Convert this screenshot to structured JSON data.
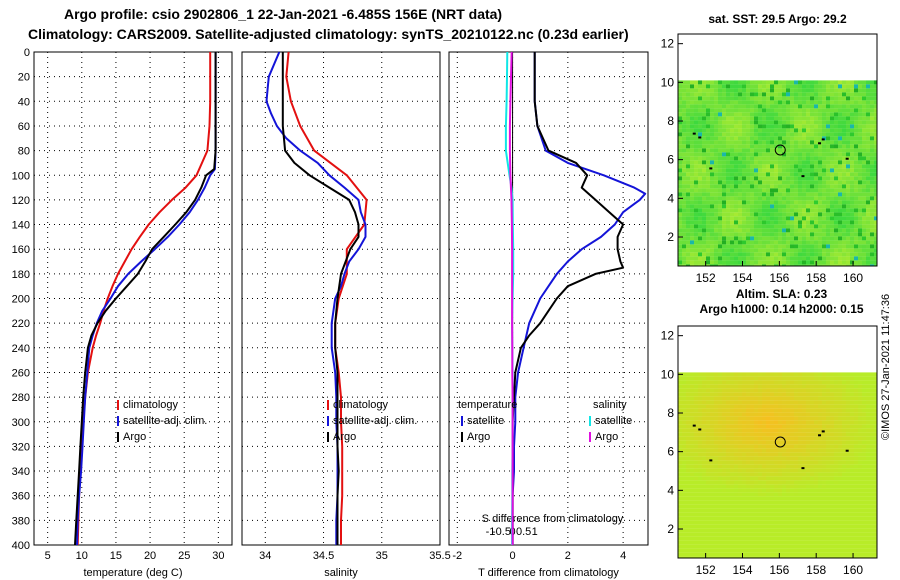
{
  "header": {
    "title_line1": "Argo profile: csio 2902806_1 22-Jan-2021 -6.485S 156E (NRT data)",
    "title_line2": "Climatology: CARS2009. Satellite-adjusted climatology: synTS_20210122.nc (0.23d earlier)"
  },
  "credit": "©IMOS 27-Jan-2021 11:47:36",
  "colors": {
    "climatology": "#e31010",
    "satellite": "#1414d8",
    "argo": "#000000",
    "salinity": "#e010e0",
    "temp_sat": "#10e6e6"
  },
  "chart_data": [
    {
      "name": "temperature-profile",
      "type": "line",
      "xlabel": "temperature (deg C)",
      "ylabel": "depth",
      "xlim": [
        3,
        32
      ],
      "ylim": [
        400,
        0
      ],
      "xticks": [
        "5",
        "10",
        "15",
        "20",
        "25",
        "30"
      ],
      "yticks": [
        "0",
        "20",
        "40",
        "60",
        "80",
        "100",
        "120",
        "140",
        "160",
        "180",
        "200",
        "220",
        "240",
        "260",
        "280",
        "300",
        "320",
        "340",
        "360",
        "380",
        "400"
      ],
      "legend": [
        "climatology",
        "satellite-adj. clim.",
        "Argo"
      ],
      "series": [
        {
          "name": "climatology",
          "depth": [
            0,
            20,
            40,
            60,
            80,
            100,
            110,
            120,
            130,
            140,
            150,
            160,
            170,
            180,
            190,
            200,
            210,
            220,
            230,
            240,
            260,
            280,
            300,
            320,
            340,
            360,
            380,
            400
          ],
          "values": [
            28.8,
            28.8,
            28.8,
            28.7,
            28.4,
            26.8,
            25.2,
            23.2,
            21.4,
            19.8,
            18.5,
            17.3,
            16.3,
            15.3,
            14.5,
            13.8,
            13.2,
            12.7,
            12.1,
            11.6,
            10.9,
            10.5,
            10.2,
            10.0,
            9.8,
            9.6,
            9.5,
            9.4
          ]
        },
        {
          "name": "satellite-adj. clim.",
          "depth": [
            0,
            20,
            40,
            60,
            80,
            95,
            100,
            110,
            120,
            130,
            140,
            150,
            160,
            170,
            180,
            190,
            200,
            210,
            220,
            230,
            240,
            260,
            280,
            300,
            320,
            340,
            360,
            380,
            400
          ],
          "values": [
            29.6,
            29.6,
            29.6,
            29.6,
            29.6,
            29.5,
            28.8,
            28.0,
            27.0,
            25.8,
            24.3,
            22.6,
            20.7,
            18.7,
            16.8,
            15.3,
            14.2,
            13.0,
            12.2,
            11.6,
            11.1,
            10.8,
            10.5,
            10.3,
            10.1,
            9.9,
            9.6,
            9.4,
            9.3
          ]
        },
        {
          "name": "Argo",
          "depth": [
            0,
            20,
            40,
            60,
            80,
            95,
            100,
            110,
            120,
            130,
            140,
            150,
            160,
            170,
            180,
            190,
            200,
            210,
            220,
            230,
            240,
            260,
            280,
            300,
            320,
            340,
            360,
            380,
            400
          ],
          "values": [
            29.6,
            29.6,
            29.6,
            29.6,
            29.6,
            29.4,
            28.2,
            27.5,
            26.6,
            25.3,
            23.7,
            22.0,
            20.3,
            19.3,
            18.2,
            16.6,
            15.0,
            13.5,
            12.3,
            11.4,
            10.9,
            10.5,
            10.2,
            10.0,
            9.8,
            9.6,
            9.4,
            9.2,
            9.0
          ]
        }
      ]
    },
    {
      "name": "salinity-profile",
      "type": "line",
      "xlabel": "salinity",
      "ylabel": "depth",
      "xlim": [
        33.8,
        35.5
      ],
      "ylim": [
        400,
        0
      ],
      "xticks": [
        "34",
        "34.5",
        "35",
        "35.5"
      ],
      "legend": [
        "climatology",
        "satellite-adj. clim.",
        "Argo"
      ],
      "series": [
        {
          "name": "climatology",
          "depth": [
            0,
            20,
            40,
            60,
            80,
            100,
            120,
            140,
            160,
            180,
            200,
            220,
            240,
            260,
            280,
            300,
            320,
            340,
            360,
            380,
            400
          ],
          "values": [
            34.2,
            34.18,
            34.22,
            34.3,
            34.42,
            34.7,
            34.87,
            34.85,
            34.7,
            34.7,
            34.63,
            34.6,
            34.6,
            34.63,
            34.65,
            34.65,
            34.66,
            34.66,
            34.66,
            34.65,
            34.65
          ]
        },
        {
          "name": "satellite-adj. clim.",
          "depth": [
            0,
            20,
            30,
            40,
            50,
            60,
            70,
            80,
            90,
            100,
            110,
            120,
            130,
            140,
            150,
            160,
            170,
            180,
            190,
            200,
            220,
            240,
            260,
            280,
            300,
            320,
            340,
            360,
            380,
            400
          ],
          "values": [
            34.12,
            34.03,
            34.02,
            34.01,
            34.05,
            34.1,
            34.18,
            34.3,
            34.45,
            34.55,
            34.68,
            34.8,
            34.82,
            34.86,
            34.86,
            34.8,
            34.72,
            34.68,
            34.65,
            34.6,
            34.57,
            34.57,
            34.6,
            34.61,
            34.61,
            34.62,
            34.62,
            34.62,
            34.61,
            34.61
          ]
        },
        {
          "name": "Argo",
          "depth": [
            0,
            20,
            40,
            60,
            80,
            90,
            100,
            110,
            120,
            130,
            140,
            150,
            160,
            180,
            200,
            220,
            240,
            260,
            280,
            300,
            320,
            340,
            360,
            380,
            400
          ],
          "values": [
            34.15,
            34.15,
            34.15,
            34.15,
            34.17,
            34.25,
            34.38,
            34.55,
            34.72,
            34.77,
            34.8,
            34.8,
            34.73,
            34.65,
            34.62,
            34.6,
            34.6,
            34.62,
            34.62,
            34.62,
            34.62,
            34.63,
            34.62,
            34.62,
            34.62
          ]
        }
      ]
    },
    {
      "name": "difference-profile",
      "type": "line",
      "xlabel": "T difference from climatology",
      "ylabel": "depth",
      "xlim": [
        -2.3,
        4.9
      ],
      "ylim": [
        400,
        0
      ],
      "xticks": [
        "-2",
        "0",
        "2",
        "4"
      ],
      "top_axis_label": "S difference from climatology",
      "top_xticks": [
        "-1",
        "-0.5",
        "0",
        "0.5",
        "1"
      ],
      "legend_temperature_title": "temperature",
      "legend_salinity_title": "salinity",
      "legend_temperature": [
        "satellite",
        "Argo"
      ],
      "legend_salinity": [
        "satellite",
        "Argo"
      ],
      "series": [
        {
          "name": "temperature satellite",
          "depth": [
            0,
            20,
            40,
            60,
            80,
            90,
            100,
            110,
            115,
            120,
            130,
            140,
            150,
            160,
            170,
            180,
            190,
            200,
            210,
            220,
            230,
            240,
            260,
            280,
            300,
            320,
            340,
            360,
            380,
            400
          ],
          "values": [
            0.8,
            0.8,
            0.8,
            0.9,
            1.2,
            2.0,
            3.3,
            4.4,
            4.8,
            4.6,
            4.0,
            3.7,
            3.2,
            2.5,
            2.0,
            1.6,
            1.3,
            1.0,
            0.8,
            0.6,
            0.5,
            0.4,
            0.2,
            0.1,
            0.1,
            0.05,
            0.05,
            0.0,
            0.0,
            0.0
          ]
        },
        {
          "name": "temperature Argo",
          "depth": [
            0,
            20,
            40,
            60,
            80,
            90,
            100,
            110,
            120,
            130,
            140,
            150,
            160,
            170,
            175,
            180,
            190,
            200,
            210,
            220,
            230,
            240,
            260,
            280,
            300,
            320,
            340,
            360,
            380,
            400
          ],
          "values": [
            0.8,
            0.8,
            0.8,
            0.9,
            1.3,
            2.3,
            2.7,
            2.5,
            3.0,
            3.5,
            4.0,
            3.8,
            3.8,
            3.9,
            4.0,
            3.0,
            2.0,
            1.6,
            1.3,
            1.0,
            0.6,
            0.3,
            0.1,
            0.05,
            0.0,
            0.0,
            0.0,
            0.0,
            0.0,
            0.0
          ]
        },
        {
          "name": "salinity satellite",
          "depth": [
            0,
            20,
            40,
            60,
            80,
            100,
            110,
            120,
            140,
            160,
            180,
            200,
            220,
            240,
            260,
            280,
            300,
            320,
            340,
            360,
            380,
            400
          ],
          "values": [
            -0.24,
            -0.25,
            -0.27,
            -0.3,
            -0.3,
            -0.14,
            -0.05,
            0.0,
            0.01,
            0.03,
            0.03,
            0.0,
            -0.02,
            -0.01,
            0.0,
            0.0,
            0.0,
            0.0,
            -0.01,
            -0.01,
            -0.02,
            -0.02
          ]
        },
        {
          "name": "salinity Argo",
          "depth": [
            0,
            20,
            40,
            60,
            80,
            100,
            120,
            140,
            160,
            180,
            200,
            220,
            240,
            260,
            280,
            300,
            320,
            340,
            360,
            380,
            400
          ],
          "values": [
            -0.04,
            -0.07,
            -0.1,
            -0.12,
            -0.12,
            -0.1,
            -0.05,
            -0.03,
            -0.02,
            -0.02,
            -0.02,
            -0.02,
            -0.01,
            -0.01,
            0.0,
            0.0,
            0.0,
            0.0,
            0.0,
            0.0,
            0.0
          ]
        }
      ]
    },
    {
      "name": "sst-map",
      "type": "heatmap",
      "title": "sat. SST: 29.5 Argo: 29.2",
      "xlim": [
        150.5,
        161.3
      ],
      "ylim": [
        0.5,
        12.5
      ],
      "xticks": [
        "152",
        "154",
        "156",
        "158",
        "160"
      ],
      "yticks": [
        "2",
        "4",
        "6",
        "8",
        "10",
        "12"
      ],
      "data_top": 10.1,
      "marker": {
        "lon": 156.05,
        "lat": 6.5
      }
    },
    {
      "name": "sla-map",
      "type": "heatmap",
      "title_line1": "Altim. SLA: 0.23",
      "title_line2": "Argo h1000: 0.14 h2000: 0.15",
      "xlim": [
        150.5,
        161.3
      ],
      "ylim": [
        0.5,
        12.5
      ],
      "xticks": [
        "152",
        "154",
        "156",
        "158",
        "160"
      ],
      "yticks": [
        "2",
        "4",
        "6",
        "8",
        "10",
        "12"
      ],
      "data_top": 10.1,
      "marker": {
        "lon": 156.05,
        "lat": 6.5
      }
    }
  ]
}
